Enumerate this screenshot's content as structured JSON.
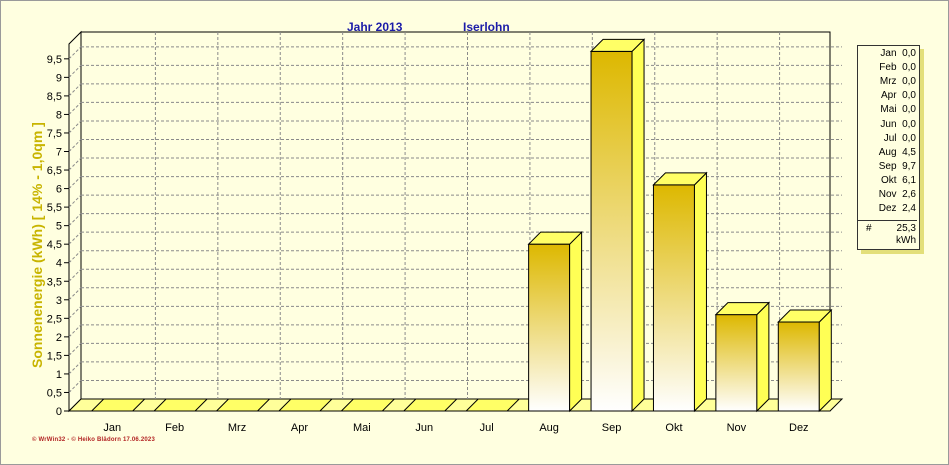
{
  "header": {
    "year_label": "Jahr  2013",
    "location": "Iserlohn"
  },
  "chart_data": {
    "type": "bar",
    "categories": [
      "Jan",
      "Feb",
      "Mrz",
      "Apr",
      "Mai",
      "Jun",
      "Jul",
      "Aug",
      "Sep",
      "Okt",
      "Nov",
      "Dez"
    ],
    "values": [
      0,
      0,
      0,
      0,
      0,
      0,
      0,
      4.5,
      9.7,
      6.1,
      2.6,
      2.4
    ],
    "ylabel": "Sonnenenergie   (kWh)     [ 14% - 1,0qm ]",
    "ylim": [
      0,
      9.9
    ],
    "yticks": [
      "0",
      "0,5",
      "1",
      "1,5",
      "2",
      "2,5",
      "3",
      "3,5",
      "4",
      "4,5",
      "5",
      "5,5",
      "6",
      "6,5",
      "7",
      "7,5",
      "8",
      "8,5",
      "9",
      "9,5"
    ],
    "grid": true,
    "legend_position": "right"
  },
  "legend": {
    "rows": [
      "Jan  0,0",
      "Feb  0,0",
      "Mrz  0,0",
      "Apr  0,0",
      "Mai  0,0",
      "Jun  0,0",
      "Jul  0,0",
      "Aug  4,5",
      "Sep  9,7",
      "Okt  6,1",
      "Nov  2,6",
      "Dez  2,4"
    ],
    "total_symbol": "#",
    "total_value": "25,3",
    "total_unit": "kWh"
  },
  "footer": {
    "copyright": "© WrWin32  -  © Heiko Blädorn  17.06.2023"
  },
  "colors": {
    "bar_top": "#ddb800",
    "bar_bottom": "#ffffff",
    "axis_label": "#c8b400",
    "title": "#1c1ca8",
    "background": "#ffffe0"
  }
}
